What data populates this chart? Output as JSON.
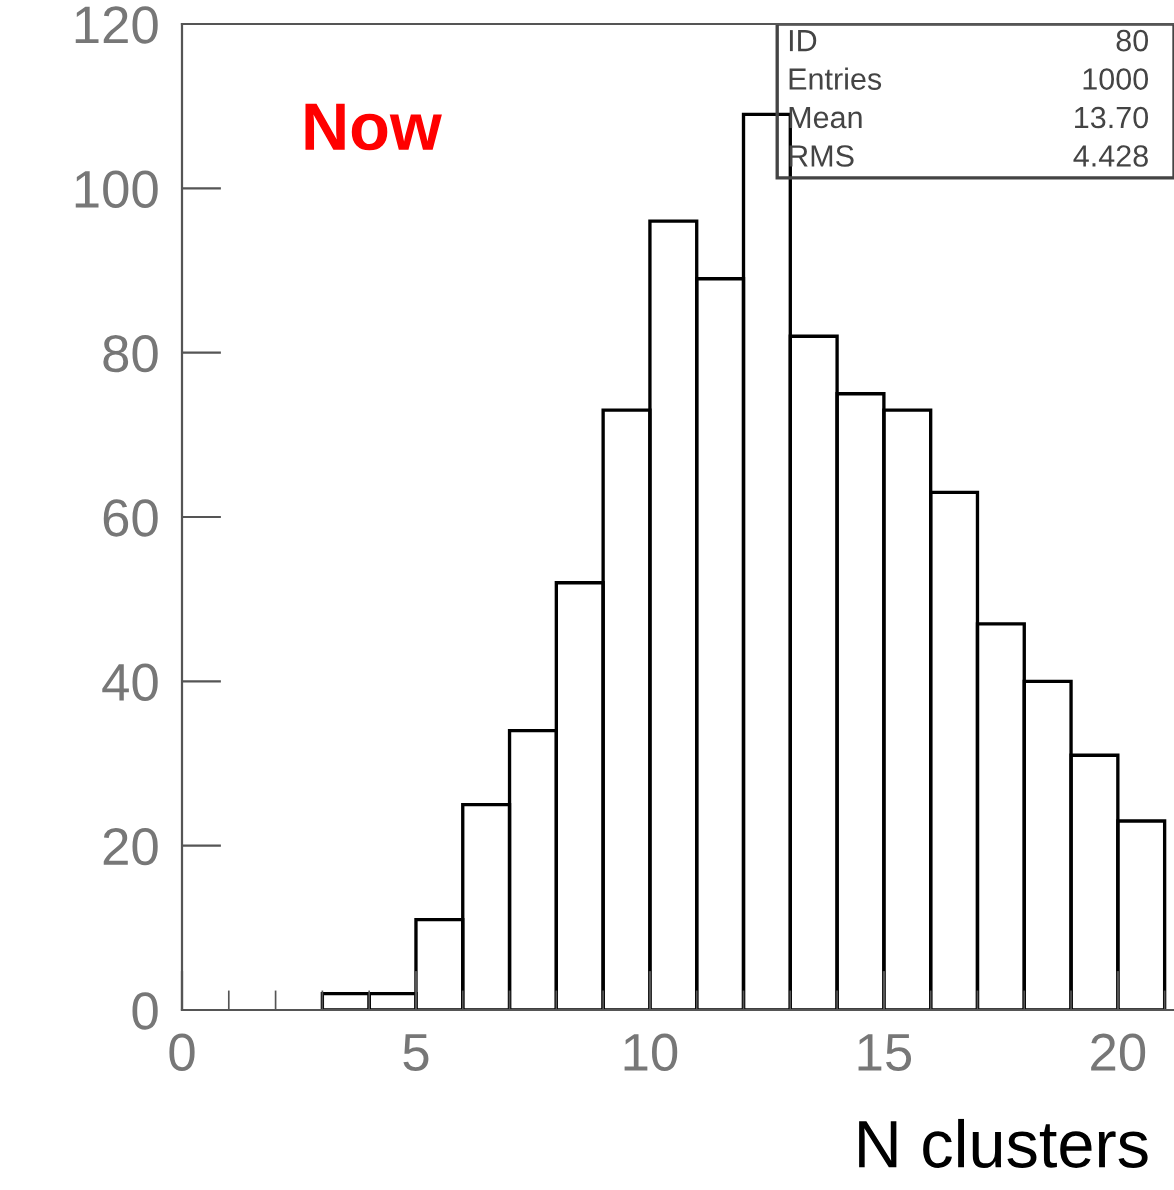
{
  "chart_data": {
    "type": "histogram",
    "xlabel": "N clusters",
    "bins": [
      3,
      4,
      5,
      6,
      7,
      8,
      9,
      10,
      11,
      12,
      13,
      14,
      15,
      16,
      17,
      18,
      19,
      20,
      21
    ],
    "values": [
      2,
      2,
      11,
      25,
      34,
      52,
      73,
      96,
      89,
      109,
      82,
      75,
      73,
      63,
      47,
      40,
      31,
      23
    ],
    "color": "#000000",
    "xlim": [
      0,
      21.2
    ],
    "xticks": [
      0,
      5,
      10,
      15,
      20
    ],
    "ylim": [
      0,
      120
    ],
    "yticks": [
      0,
      20,
      40,
      60,
      80,
      100,
      120
    ],
    "grid": false,
    "legend": false,
    "annotations": [
      "Now",
      "ID",
      "80",
      "Entries",
      "1000",
      "Mean",
      "13.70",
      "RMS",
      "4.428"
    ]
  }
}
